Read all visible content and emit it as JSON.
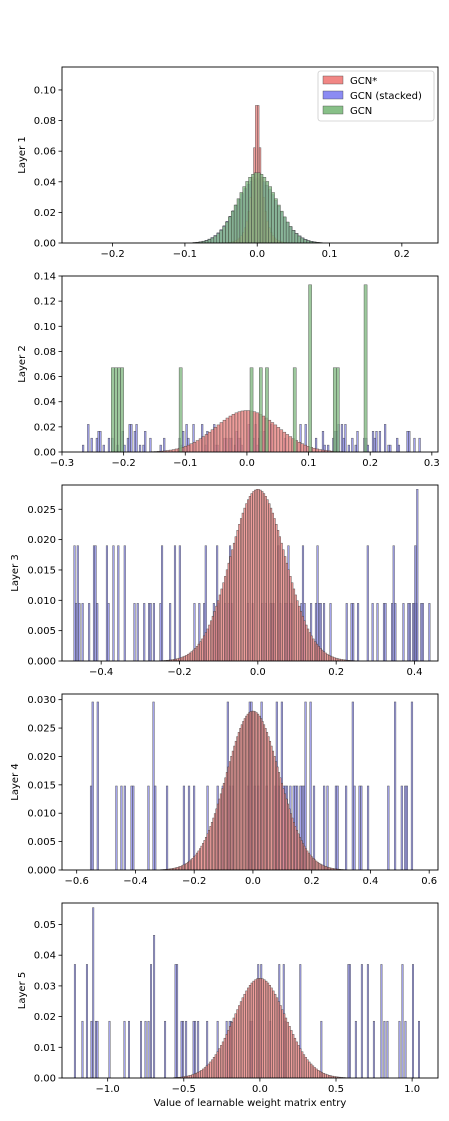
{
  "xlabel": "Value of learnable weight matrix entry",
  "legend": [
    {
      "name": "GCN*",
      "color": "#f07a78"
    },
    {
      "name": "GCN (stacked)",
      "color": "#7e7ef2"
    },
    {
      "name": "GCN",
      "color": "#7bb97b"
    }
  ],
  "colors": {
    "gcn_star": "#e8817f",
    "gcn_stacked": "#8a8ae8",
    "gcn": "#82b882",
    "edge": "#3a3a3a"
  },
  "chart_data": [
    {
      "type": "bar",
      "ylabel": "Layer 1",
      "xlim": [
        -0.27,
        0.25
      ],
      "ylim": [
        0,
        0.115
      ],
      "xticks": [
        -0.2,
        -0.1,
        0.0,
        0.1,
        0.2
      ],
      "xtick_labels": [
        "−0.2",
        "−0.1",
        "0.0",
        "0.1",
        "0.2"
      ],
      "yticks": [
        0,
        0.02,
        0.04,
        0.06,
        0.08,
        0.1
      ],
      "ytick_labels": [
        "0.00",
        "0.02",
        "0.04",
        "0.06",
        "0.08",
        "0.10"
      ],
      "series": [
        {
          "name": "GCN*",
          "dist": "laplace",
          "mu": 0,
          "peak": 0.108,
          "scale": 0.007,
          "range": [
            -0.09,
            0.09
          ],
          "bins": 70
        },
        {
          "name": "GCN (stacked)",
          "dist": "gauss",
          "mu": 0,
          "peak": 0.042,
          "sigma": 0.028,
          "range": [
            -0.26,
            0.24
          ],
          "bins": 120
        },
        {
          "name": "GCN",
          "dist": "gauss",
          "mu": 0,
          "peak": 0.046,
          "sigma": 0.027,
          "range": [
            -0.12,
            0.12
          ],
          "bins": 60
        }
      ]
    },
    {
      "type": "bar",
      "ylabel": "Layer 2",
      "xlim": [
        -0.3,
        0.31
      ],
      "ylim": [
        0,
        0.14
      ],
      "xticks": [
        -0.3,
        -0.2,
        -0.1,
        0.0,
        0.1,
        0.2,
        0.3
      ],
      "xtick_labels": [
        "−0.3",
        "−0.2",
        "−0.1",
        "0.0",
        "0.1",
        "0.2",
        "0.3"
      ],
      "yticks": [
        0,
        0.02,
        0.04,
        0.06,
        0.08,
        0.1,
        0.12,
        0.14
      ],
      "ytick_labels": [
        "0.00",
        "0.02",
        "0.04",
        "0.06",
        "0.08",
        "0.10",
        "0.12",
        "0.14"
      ],
      "series": [
        {
          "name": "GCN*",
          "dist": "gauss",
          "mu": 0,
          "peak": 0.033,
          "sigma": 0.05,
          "range": [
            -0.17,
            0.17
          ],
          "bins": 70
        },
        {
          "name": "GCN (stacked)",
          "dist": "random",
          "levels": [
            0.0055,
            0.011,
            0.0165,
            0.022
          ],
          "seed": 7,
          "range": [
            -0.27,
            0.29
          ],
          "bins": 200,
          "fill": 0.42
        },
        {
          "name": "GCN",
          "dist": "spikes",
          "x": [
            -0.22,
            -0.215,
            -0.21,
            -0.205,
            -0.11,
            0.005,
            0.02,
            0.03,
            0.075,
            0.1,
            0.14,
            0.145,
            0.19
          ],
          "y": [
            0.067,
            0.067,
            0.067,
            0.067,
            0.067,
            0.067,
            0.067,
            0.067,
            0.067,
            0.133,
            0.067,
            0.067,
            0.133
          ],
          "width": 0.005
        }
      ]
    },
    {
      "type": "bar",
      "ylabel": "Layer 3",
      "xlim": [
        -0.5,
        0.46
      ],
      "ylim": [
        0,
        0.029
      ],
      "xticks": [
        -0.4,
        -0.2,
        0.0,
        0.2,
        0.4
      ],
      "xtick_labels": [
        "−0.4",
        "−0.2",
        "0.0",
        "0.2",
        "0.4"
      ],
      "yticks": [
        0,
        0.005,
        0.01,
        0.015,
        0.02,
        0.025
      ],
      "ytick_labels": [
        "0.000",
        "0.005",
        "0.010",
        "0.015",
        "0.020",
        "0.025"
      ],
      "series": [
        {
          "name": "GCN*",
          "dist": "gauss",
          "mu": 0,
          "peak": 0.0283,
          "sigma": 0.07,
          "range": [
            -0.27,
            0.27
          ],
          "bins": 120
        },
        {
          "name": "GCN (stacked)",
          "dist": "random",
          "levels": [
            0.0095,
            0.0095,
            0.0095,
            0.019
          ],
          "seed": 11,
          "range": [
            -0.47,
            0.44
          ],
          "bins": 220,
          "fill": 0.38,
          "extra": [
            {
              "x": 0.405,
              "y": 0.0283
            },
            {
              "x": 0.4,
              "y": 0.019
            },
            {
              "x": -0.47,
              "y": 0.019
            }
          ]
        }
      ]
    },
    {
      "type": "bar",
      "ylabel": "Layer 4",
      "xlim": [
        -0.65,
        0.63
      ],
      "ylim": [
        0,
        0.031
      ],
      "xticks": [
        -0.6,
        -0.4,
        -0.2,
        0.0,
        0.2,
        0.4,
        0.6
      ],
      "xtick_labels": [
        "−0.6",
        "−0.4",
        "−0.2",
        "0.0",
        "0.2",
        "0.4",
        "0.6"
      ],
      "yticks": [
        0,
        0.005,
        0.01,
        0.015,
        0.02,
        0.025,
        0.03
      ],
      "ytick_labels": [
        "0.000",
        "0.005",
        "0.010",
        "0.015",
        "0.020",
        "0.025",
        "0.030"
      ],
      "series": [
        {
          "name": "GCN*",
          "dist": "gauss",
          "mu": 0,
          "peak": 0.028,
          "sigma": 0.09,
          "range": [
            -0.33,
            0.33
          ],
          "bins": 130
        },
        {
          "name": "GCN (stacked)",
          "dist": "random",
          "levels": [
            0.0148,
            0.0148,
            0.0148,
            0.0296
          ],
          "seed": 23,
          "range": [
            -0.6,
            0.55
          ],
          "bins": 200,
          "fill": 0.33
        }
      ]
    },
    {
      "type": "bar",
      "ylabel": "Layer 5",
      "xlim": [
        -1.3,
        1.17
      ],
      "ylim": [
        0,
        0.057
      ],
      "xticks": [
        -1.0,
        -0.5,
        0.0,
        0.5,
        1.0
      ],
      "xtick_labels": [
        "−1.0",
        "−0.5",
        "0.0",
        "0.5",
        "1.0"
      ],
      "yticks": [
        0,
        0.01,
        0.02,
        0.03,
        0.04,
        0.05
      ],
      "ytick_labels": [
        "0.00",
        "0.01",
        "0.02",
        "0.03",
        "0.04",
        "0.05"
      ],
      "series": [
        {
          "name": "GCN*",
          "dist": "gauss",
          "mu": 0,
          "peak": 0.0325,
          "sigma": 0.17,
          "range": [
            -0.65,
            0.65
          ],
          "bins": 110
        },
        {
          "name": "GCN (stacked)",
          "dist": "random",
          "levels": [
            0.0185,
            0.0185,
            0.0185,
            0.037
          ],
          "seed": 5,
          "range": [
            -1.22,
            1.05
          ],
          "bins": 230,
          "fill": 0.26,
          "extra": [
            {
              "x": -1.1,
              "y": 0.0555
            },
            {
              "x": -0.7,
              "y": 0.0465
            },
            {
              "x": -0.72,
              "y": 0.037
            },
            {
              "x": -1.22,
              "y": 0.037
            }
          ]
        }
      ]
    }
  ]
}
